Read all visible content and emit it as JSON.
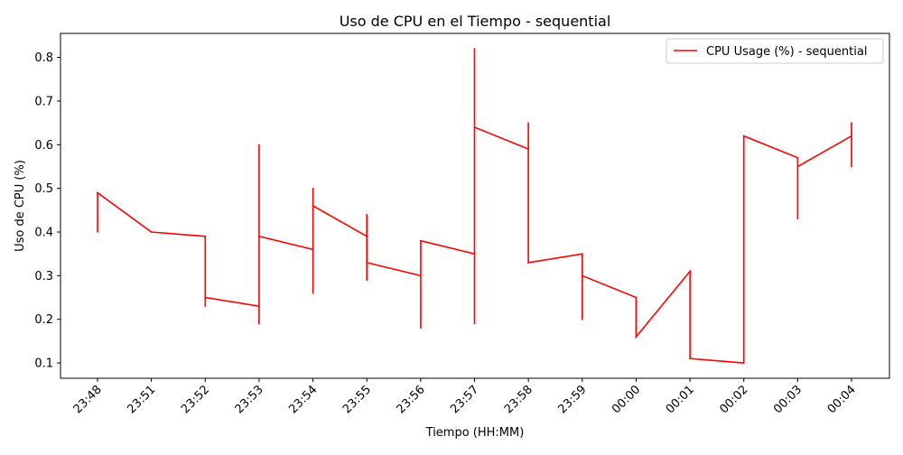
{
  "chart_data": {
    "type": "line",
    "title": "Uso de CPU en el Tiempo - sequential",
    "xlabel": "Tiempo (HH:MM)",
    "ylabel": "Uso de CPU (%)",
    "ylim": [
      0.065,
      0.855
    ],
    "grid": false,
    "legend_position": "upper right",
    "x_ticks": [
      "23:48",
      "23:51",
      "23:52",
      "23:53",
      "23:54",
      "23:55",
      "23:56",
      "23:57",
      "23:58",
      "23:59",
      "00:00",
      "00:01",
      "00:02",
      "00:03",
      "00:04"
    ],
    "y_ticks": [
      0.1,
      0.2,
      0.3,
      0.4,
      0.5,
      0.6,
      0.7,
      0.8
    ],
    "series": [
      {
        "name": "CPU Usage (%) - sequential",
        "color": "#ff0000",
        "points": [
          [
            "23:48",
            0.4
          ],
          [
            "23:48",
            0.49
          ],
          [
            "23:51",
            0.4
          ],
          [
            "23:52",
            0.39
          ],
          [
            "23:52",
            0.23
          ],
          [
            "23:52",
            0.25
          ],
          [
            "23:53",
            0.23
          ],
          [
            "23:53",
            0.19
          ],
          [
            "23:53",
            0.6
          ],
          [
            "23:53",
            0.39
          ],
          [
            "23:54",
            0.36
          ],
          [
            "23:54",
            0.26
          ],
          [
            "23:54",
            0.5
          ],
          [
            "23:54",
            0.46
          ],
          [
            "23:55",
            0.39
          ],
          [
            "23:55",
            0.44
          ],
          [
            "23:55",
            0.29
          ],
          [
            "23:55",
            0.33
          ],
          [
            "23:56",
            0.3
          ],
          [
            "23:56",
            0.18
          ],
          [
            "23:56",
            0.38
          ],
          [
            "23:57",
            0.35
          ],
          [
            "23:57",
            0.19
          ],
          [
            "23:57",
            0.82
          ],
          [
            "23:57",
            0.64
          ],
          [
            "23:58",
            0.59
          ],
          [
            "23:58",
            0.65
          ],
          [
            "23:58",
            0.33
          ],
          [
            "23:59",
            0.35
          ],
          [
            "23:59",
            0.2
          ],
          [
            "23:59",
            0.3
          ],
          [
            "00:00",
            0.25
          ],
          [
            "00:00",
            0.16
          ],
          [
            "00:01",
            0.31
          ],
          [
            "00:01",
            0.11
          ],
          [
            "00:02",
            0.1
          ],
          [
            "00:02",
            0.62
          ],
          [
            "00:03",
            0.57
          ],
          [
            "00:03",
            0.43
          ],
          [
            "00:03",
            0.55
          ],
          [
            "00:04",
            0.62
          ],
          [
            "00:04",
            0.55
          ],
          [
            "00:04",
            0.65
          ]
        ]
      }
    ]
  }
}
